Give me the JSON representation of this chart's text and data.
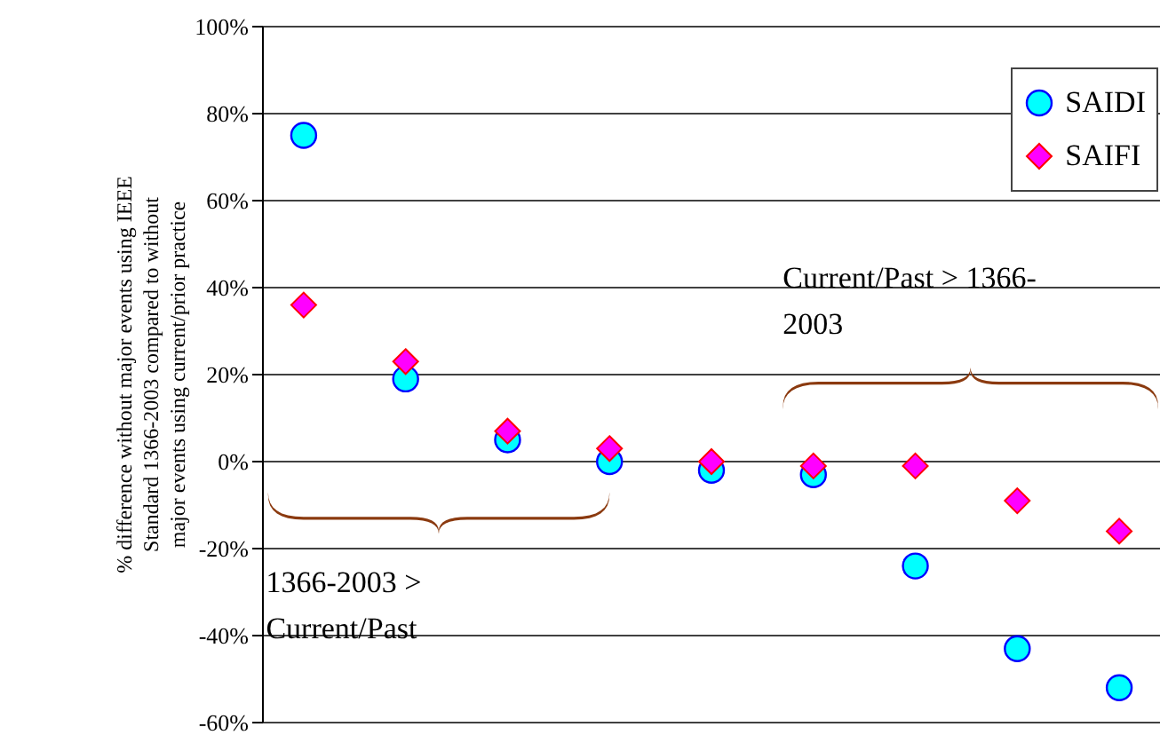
{
  "chart_data": {
    "type": "scatter",
    "ylabel": "% difference without major events using IEEE\nStandard 1366-2003 compared to without\nmajor events using current/prior practice",
    "categories": [
      null,
      null,
      null,
      null,
      null,
      null,
      null,
      null,
      null
    ],
    "series": [
      {
        "name": "SAIDI",
        "color": "#00ffff",
        "marker": "circle",
        "values": [
          75,
          19,
          5,
          0,
          -2,
          -3,
          -24,
          -43,
          -52
        ]
      },
      {
        "name": "SAIFI",
        "color": "#ff00ff",
        "marker": "diamond",
        "values": [
          36,
          23,
          7,
          3,
          0,
          -1,
          -1,
          -9,
          -16
        ]
      }
    ],
    "ylim": [
      -60,
      100
    ],
    "yticks": [
      {
        "value": -60,
        "label": "-60%"
      },
      {
        "value": -40,
        "label": "-40%"
      },
      {
        "value": -20,
        "label": "-20%"
      },
      {
        "value": 0,
        "label": "0%"
      },
      {
        "value": 20,
        "label": "20%"
      },
      {
        "value": 40,
        "label": "40%"
      },
      {
        "value": 60,
        "label": "60%"
      },
      {
        "value": 80,
        "label": "80%"
      },
      {
        "value": 100,
        "label": "100%"
      }
    ],
    "annotations": [
      "1366-2003 >\nCurrent/Past",
      "Current/Past > 1366-\n2003"
    ],
    "grid": "y",
    "legend": "top right",
    "tick_labels": "y"
  }
}
